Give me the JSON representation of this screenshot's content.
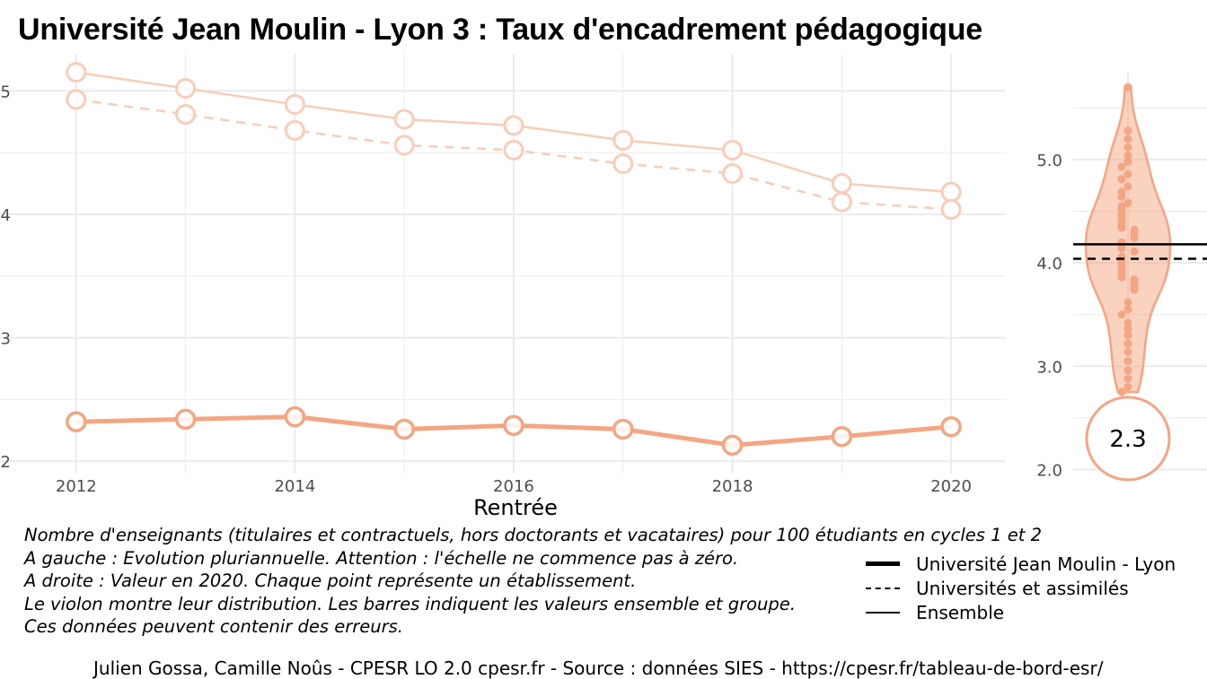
{
  "title": "Université Jean Moulin - Lyon 3  :  Taux d'encadrement pédagogique",
  "chart_data": [
    {
      "type": "line",
      "xlabel": "Rentrée",
      "ylabel": "",
      "x": [
        2012,
        2013,
        2014,
        2015,
        2016,
        2017,
        2018,
        2019,
        2020
      ],
      "x_ticks": [
        "2012",
        "2014",
        "2016",
        "2018",
        "2020"
      ],
      "y_ticks": [
        "2",
        "3",
        "4",
        "5"
      ],
      "ylim": [
        1.9,
        5.3
      ],
      "grid": true,
      "series": [
        {
          "name": "Université Jean Moulin - Lyon",
          "style": "thick",
          "values": [
            2.32,
            2.34,
            2.36,
            2.26,
            2.29,
            2.26,
            2.13,
            2.2,
            2.28
          ]
        },
        {
          "name": "Universités et assimilés",
          "style": "dashed",
          "values": [
            4.93,
            4.81,
            4.68,
            4.56,
            4.52,
            4.41,
            4.33,
            4.1,
            4.04
          ]
        },
        {
          "name": "Ensemble",
          "style": "thin",
          "values": [
            5.15,
            5.02,
            4.89,
            4.77,
            4.72,
            4.6,
            4.52,
            4.25,
            4.18
          ]
        }
      ]
    },
    {
      "type": "scatter",
      "subtype": "violin",
      "y_ticks": [
        "2.0",
        "3.0",
        "4.0",
        "5.0"
      ],
      "ylim": [
        1.9,
        5.85
      ],
      "highlight_value": 2.3,
      "highlight_label": "2.3",
      "ensemble_value": 4.18,
      "group_value": 4.04,
      "points": [
        5.7,
        5.28,
        5.2,
        5.12,
        5.04,
        4.98,
        4.93,
        4.86,
        4.81,
        4.74,
        4.69,
        4.64,
        4.58,
        4.55,
        4.52,
        4.47,
        4.44,
        4.4,
        4.36,
        4.34,
        4.32,
        4.3,
        4.28,
        4.26,
        4.24,
        4.2,
        4.16,
        4.14,
        4.11,
        4.06,
        4.02,
        3.98,
        3.95,
        3.92,
        3.89,
        3.86,
        3.84,
        3.82,
        3.8,
        3.78,
        3.76,
        3.74,
        3.62,
        3.55,
        3.5,
        3.42,
        3.36,
        3.3,
        3.22,
        3.14,
        3.05,
        2.96,
        2.88,
        2.8,
        2.75
      ]
    }
  ],
  "notes": [
    "Nombre d'enseignants (titulaires et contractuels, hors doctorants et vacataires) pour 100 étudiants en cycles 1 et 2",
    "A gauche : Evolution pluriannuelle. Attention : l'échelle ne commence pas à zéro.",
    "A droite : Valeur en 2020. Chaque point représente un établissement.",
    "Le violon montre leur distribution. Les barres indiquent les valeurs ensemble et groupe.",
    "Ces données peuvent contenir des erreurs."
  ],
  "legend": [
    {
      "label": "Université Jean Moulin - Lyon",
      "style": "thick"
    },
    {
      "label": "Universités et assimilés",
      "style": "dashed"
    },
    {
      "label": "Ensemble",
      "style": "thin"
    }
  ],
  "caption": "Julien Gossa, Camille Noûs - CPESR LO 2.0 cpesr.fr - Source : données SIES - https://cpesr.fr/tableau-de-bord-esr/",
  "colors": {
    "main": "#f4a582",
    "light": "#f8cdb8",
    "fill": "#f4a582",
    "grid": "#ebebeb"
  }
}
